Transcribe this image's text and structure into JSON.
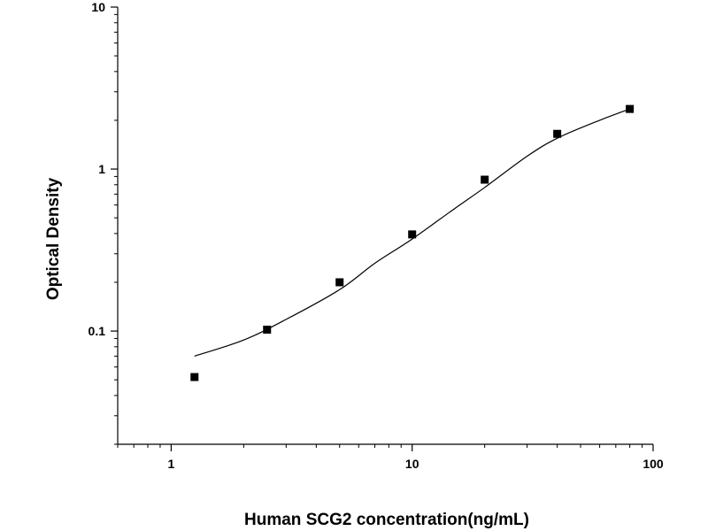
{
  "chart_data": {
    "type": "scatter",
    "title": "",
    "xlabel": "Human SCG2 concentration(ng/mL)",
    "ylabel": "Optical Density",
    "x_scale": "log",
    "y_scale": "log",
    "xlim": [
      0.6,
      100
    ],
    "ylim": [
      0.02,
      10
    ],
    "x_ticks": [
      {
        "value": 1,
        "label": "1"
      },
      {
        "value": 10,
        "label": "10"
      },
      {
        "value": 100,
        "label": "100"
      }
    ],
    "y_ticks": [
      {
        "value": 0.1,
        "label": "0.1"
      },
      {
        "value": 1,
        "label": "1"
      },
      {
        "value": 10,
        "label": "10"
      }
    ],
    "grid": false,
    "legend": "none",
    "series": [
      {
        "type": "scatter",
        "marker": "square",
        "color": "#000000",
        "points": [
          {
            "x": 1.25,
            "y": 0.052
          },
          {
            "x": 2.5,
            "y": 0.102
          },
          {
            "x": 5,
            "y": 0.2
          },
          {
            "x": 10,
            "y": 0.395
          },
          {
            "x": 20,
            "y": 0.86
          },
          {
            "x": 40,
            "y": 1.65
          },
          {
            "x": 80,
            "y": 2.35
          }
        ]
      },
      {
        "type": "line",
        "style": "fitted curve",
        "color": "#000000",
        "points": [
          {
            "x": 1.25,
            "y": 0.07
          },
          {
            "x": 2,
            "y": 0.088
          },
          {
            "x": 3,
            "y": 0.118
          },
          {
            "x": 5,
            "y": 0.18
          },
          {
            "x": 7,
            "y": 0.262
          },
          {
            "x": 10,
            "y": 0.37
          },
          {
            "x": 15,
            "y": 0.57
          },
          {
            "x": 20,
            "y": 0.77
          },
          {
            "x": 30,
            "y": 1.2
          },
          {
            "x": 40,
            "y": 1.55
          },
          {
            "x": 60,
            "y": 2.0
          },
          {
            "x": 80,
            "y": 2.35
          }
        ]
      }
    ]
  }
}
